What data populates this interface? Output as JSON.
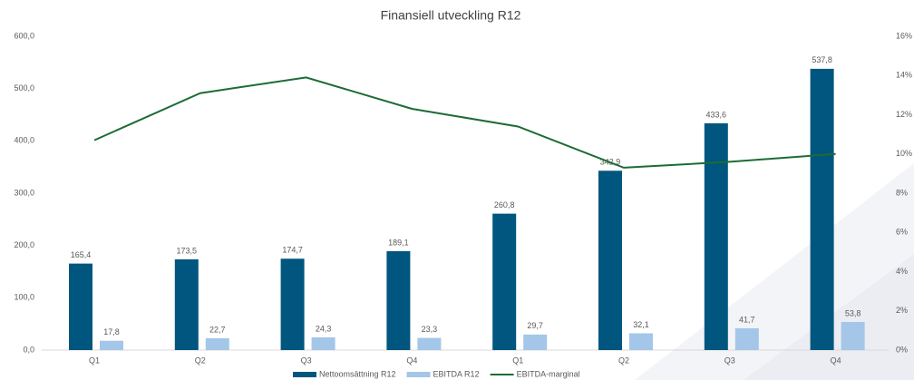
{
  "chart_data": {
    "type": "bar",
    "title": "Finansiell utveckling R12",
    "categories": [
      "Q1",
      "Q2",
      "Q3",
      "Q4",
      "Q1",
      "Q2",
      "Q3",
      "Q4"
    ],
    "series": [
      {
        "name": "Nettoomsättning R12",
        "color": "#00567e",
        "type": "bar",
        "values": [
          165.4,
          173.5,
          174.7,
          189.1,
          260.8,
          342.9,
          433.6,
          537.8
        ],
        "value_labels": [
          "165,4",
          "173,5",
          "174,7",
          "189,1",
          "260,8",
          "342,9",
          "433,6",
          "537,8"
        ]
      },
      {
        "name": "EBITDA R12",
        "color": "#a4c6e8",
        "type": "bar",
        "values": [
          17.8,
          22.7,
          24.3,
          23.3,
          29.7,
          32.1,
          41.7,
          53.8
        ],
        "value_labels": [
          "17,8",
          "22,7",
          "24,3",
          "23,3",
          "29,7",
          "32,1",
          "41,7",
          "53,8"
        ]
      },
      {
        "name": "EBITDA-marginal",
        "color": "#1e6b35",
        "type": "line",
        "axis": "y2",
        "values": [
          10.7,
          13.1,
          13.9,
          12.3,
          11.4,
          9.3,
          9.6,
          10.0
        ]
      }
    ],
    "ylim": [
      0,
      600
    ],
    "yticks": [
      {
        "value": 0,
        "label": "0,0"
      },
      {
        "value": 100,
        "label": "100,0"
      },
      {
        "value": 200,
        "label": "200,0"
      },
      {
        "value": 300,
        "label": "300,0"
      },
      {
        "value": 400,
        "label": "400,0"
      },
      {
        "value": 500,
        "label": "500,0"
      },
      {
        "value": 600,
        "label": "600,0"
      }
    ],
    "y2lim": [
      0,
      16
    ],
    "y2ticks": [
      {
        "value": 0,
        "label": "0%"
      },
      {
        "value": 2,
        "label": "2%"
      },
      {
        "value": 4,
        "label": "4%"
      },
      {
        "value": 6,
        "label": "6%"
      },
      {
        "value": 8,
        "label": "8%"
      },
      {
        "value": 10,
        "label": "10%"
      },
      {
        "value": 12,
        "label": "12%"
      },
      {
        "value": 14,
        "label": "14%"
      },
      {
        "value": 16,
        "label": "16%"
      }
    ],
    "grid": false
  }
}
